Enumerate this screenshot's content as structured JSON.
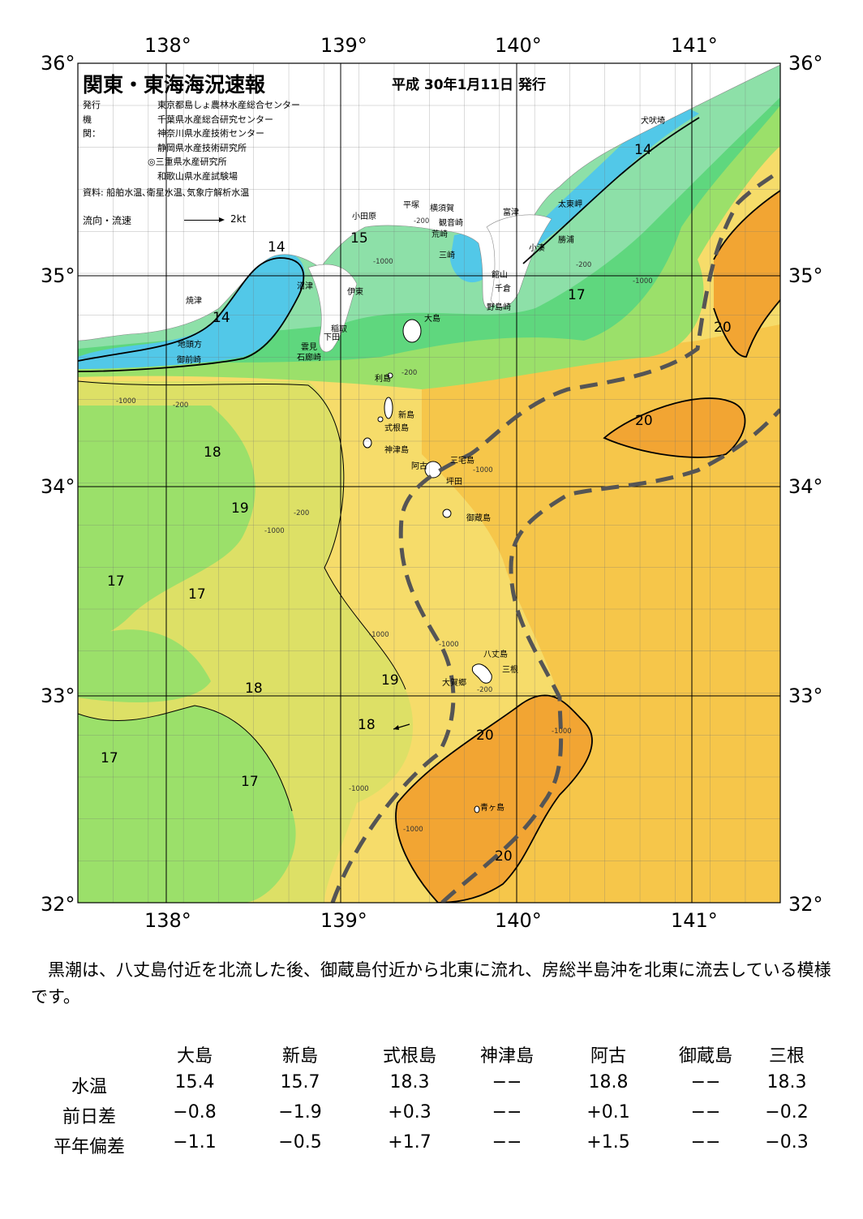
{
  "header": {
    "title": "関東・東海海況速報",
    "date": "平成 30年1月11日 発行"
  },
  "issuers": {
    "label": "発行機関：",
    "organizations": [
      "東京都島しょ農林水産総合センター",
      "千葉県水産総合研究センター",
      "神奈川県水産技術センター",
      "静岡県水産技術研究所",
      "◎三重県水産研究所",
      "和歌山県水産試験場"
    ]
  },
  "source": "資料: 船舶水温､衛星水温､気象庁解析水温",
  "flow_legend": {
    "label": "流向・流速",
    "unit": "2kt"
  },
  "axes": {
    "longitudes": [
      "138°",
      "139°",
      "140°",
      "141°"
    ],
    "latitudes": [
      "36°",
      "35°",
      "34°",
      "33°",
      "32°"
    ]
  },
  "place_names": [
    "犬吠埼",
    "太東岬",
    "勝浦",
    "小湊",
    "富津",
    "館山",
    "千倉",
    "野島崎",
    "平塚",
    "横須賀",
    "観音崎",
    "荒崎",
    "三崎",
    "小田原",
    "沼津",
    "伊東",
    "稲取",
    "下田",
    "雲見",
    "石廊崎",
    "焼津",
    "地頭方",
    "御前崎",
    "大島",
    "利島",
    "新島",
    "式根島",
    "神津島",
    "三宅島",
    "阿古",
    "坪田",
    "御蔵島",
    "八丈島",
    "三根",
    "大賀郷",
    "青ヶ島"
  ],
  "isotherm_labels": [
    "14",
    "14",
    "14",
    "15",
    "17",
    "17",
    "17",
    "17",
    "17",
    "18",
    "18",
    "18",
    "19",
    "19",
    "20",
    "20",
    "20",
    "20"
  ],
  "depth_labels": [
    "-200",
    "-1000"
  ],
  "colors": {
    "t14": "#52c8e8",
    "t15": "#8de0a8",
    "t16": "#5fd77e",
    "t17": "#9be06a",
    "t18": "#dde066",
    "t19": "#f6dc6a",
    "t19_5": "#f6c64a",
    "t20": "#f2a533",
    "land": "#ffffff",
    "kuroshio_axis": "#555555"
  },
  "summary": "黒潮は、八丈島付近を北流した後、御蔵島付近から北東に流れ、房総半島沖を北東に流去している模様です。",
  "table": {
    "columns": [
      "大島",
      "新島",
      "式根島",
      "神津島",
      "阿古",
      "御蔵島",
      "三根"
    ],
    "rows": [
      {
        "label": "水温",
        "values": [
          "15.4",
          "15.7",
          "18.3",
          "−−",
          "18.8",
          "−−",
          "18.3"
        ]
      },
      {
        "label": "前日差",
        "values": [
          "−0.8",
          "−1.9",
          "+0.3",
          "−−",
          "+0.1",
          "−−",
          "−0.2"
        ]
      },
      {
        "label": "平年偏差",
        "values": [
          "−1.1",
          "−0.5",
          "+1.7",
          "−−",
          "+1.5",
          "−−",
          "−0.3"
        ]
      }
    ]
  }
}
